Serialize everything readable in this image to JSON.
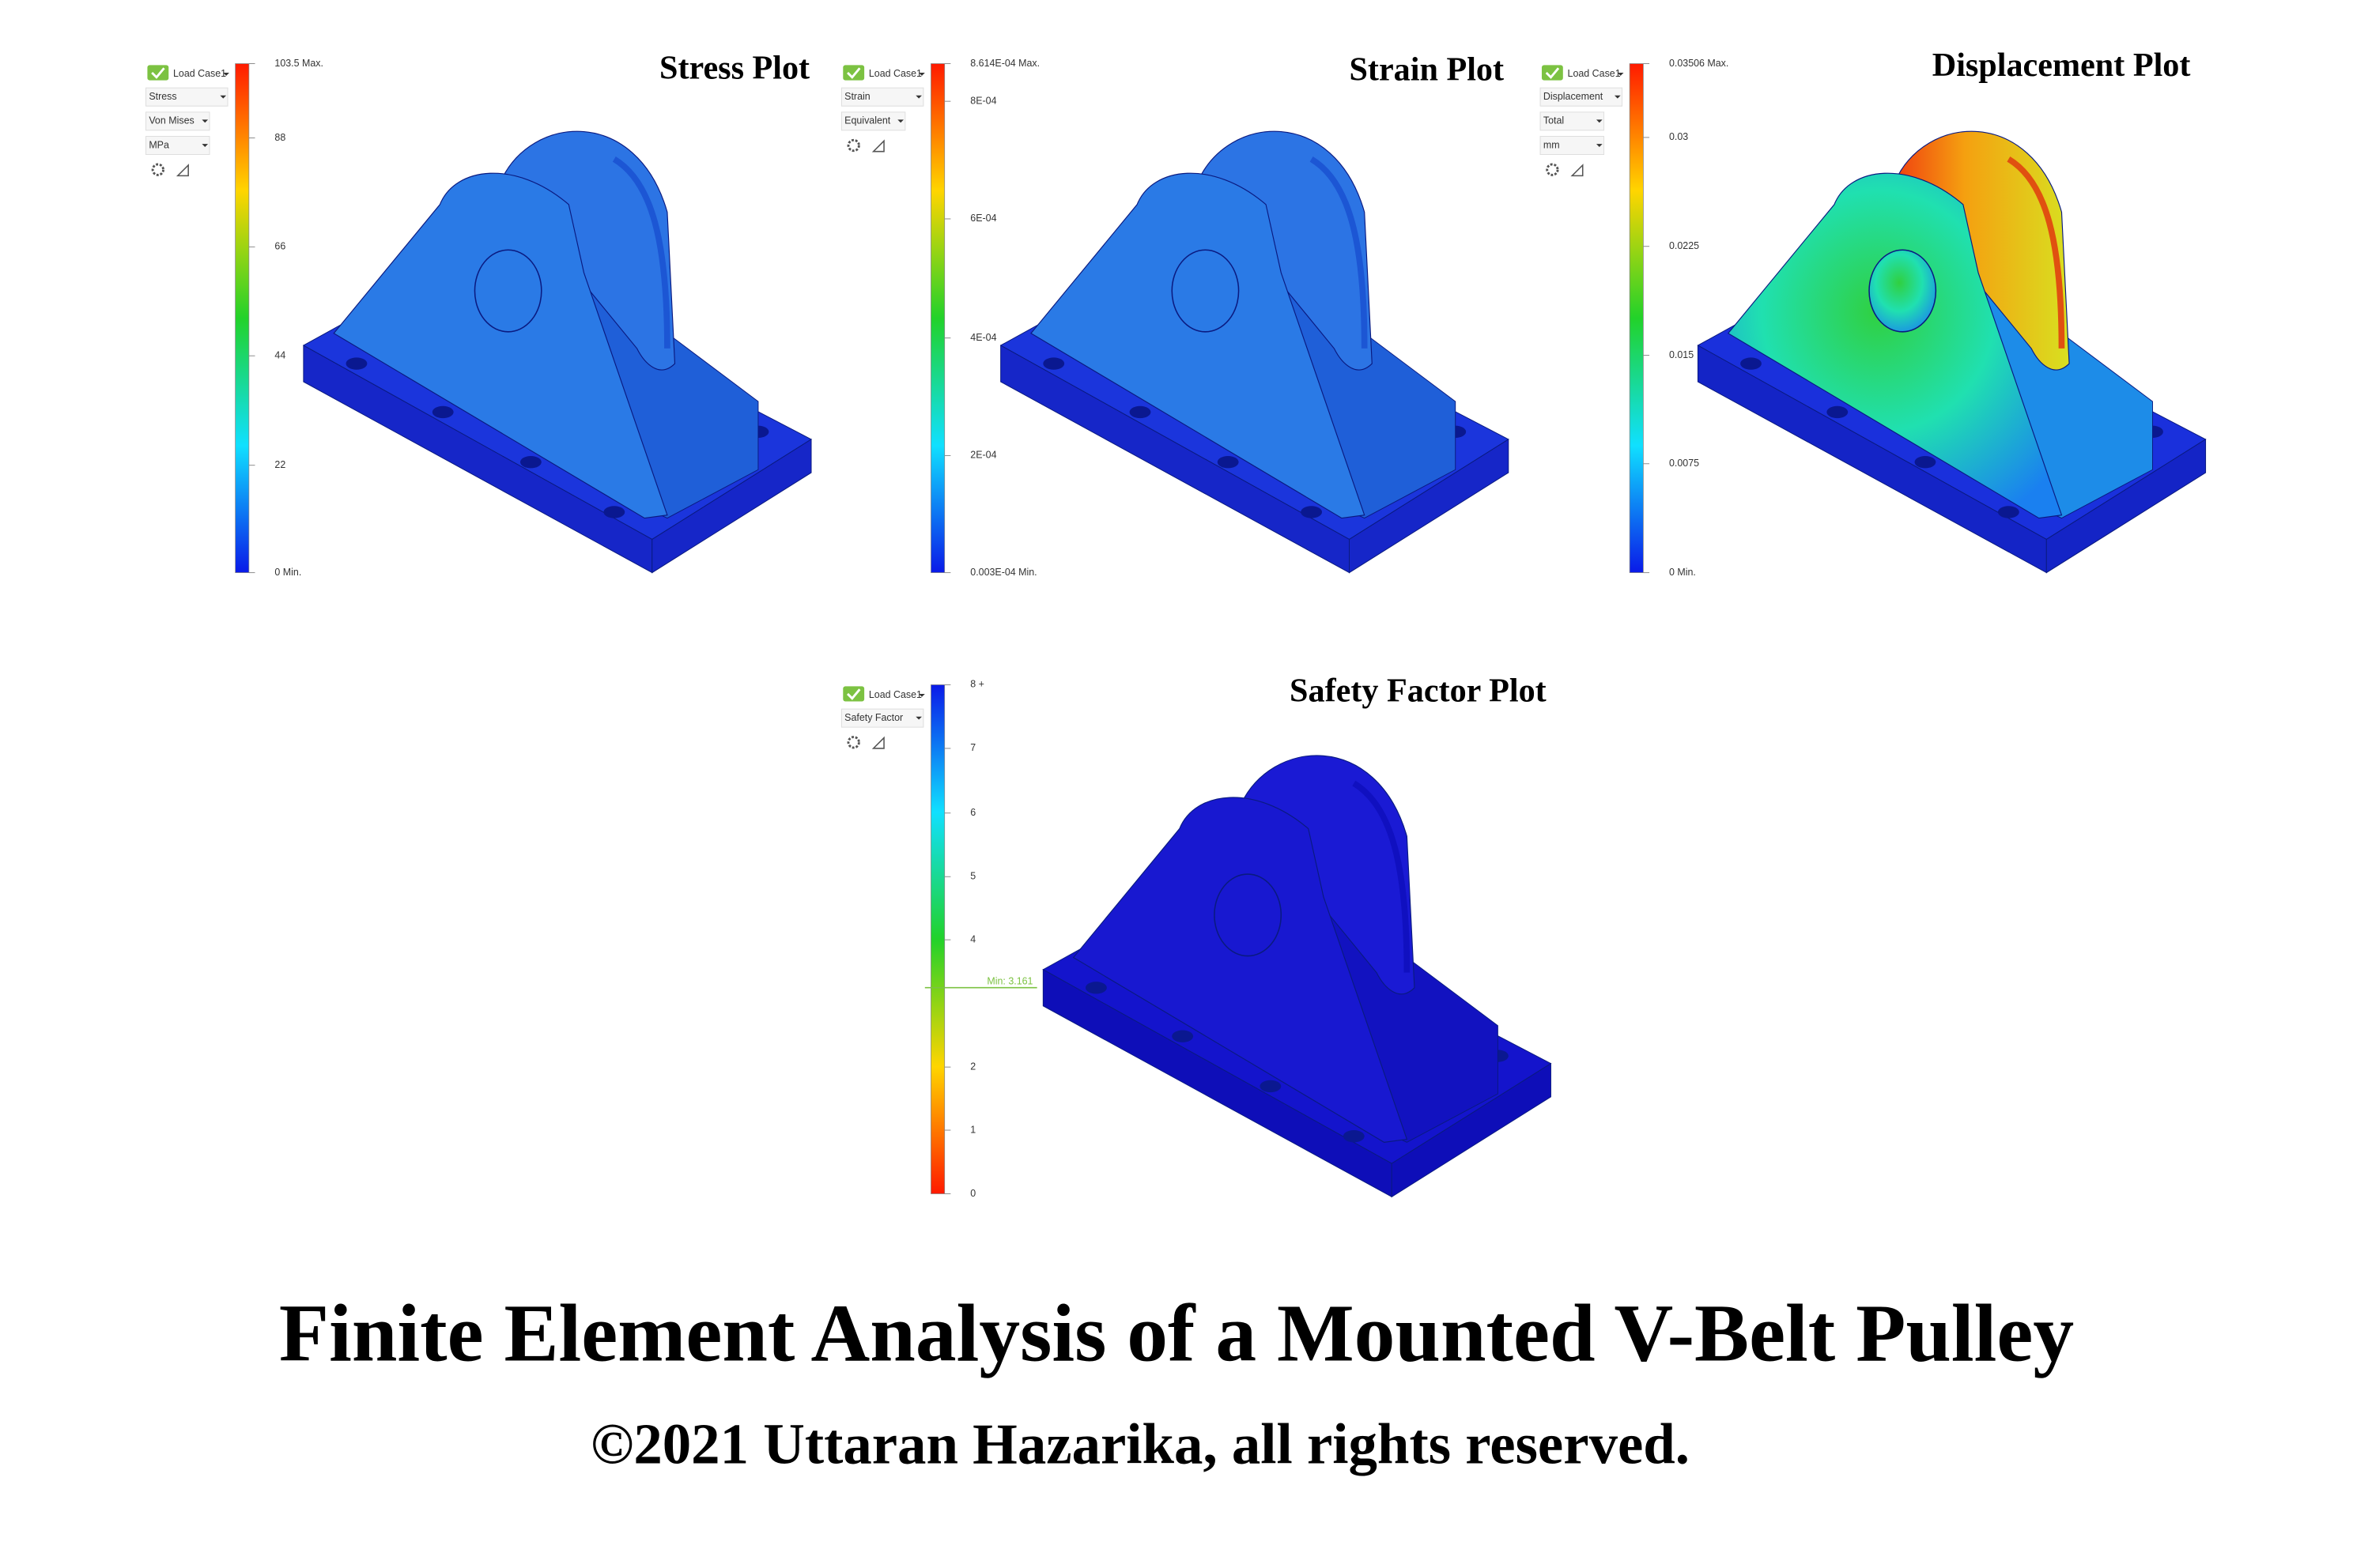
{
  "panels": [
    {
      "title": "Stress Plot",
      "load_case": "Load Case1",
      "controls": [
        "Stress",
        "Von Mises",
        "MPa"
      ],
      "legend": [
        "103.5 Max.",
        "88",
        "66",
        "44",
        "22",
        "0 Min."
      ]
    },
    {
      "title": "Strain Plot",
      "load_case": "Load Case1",
      "controls": [
        "Strain",
        "Equivalent"
      ],
      "legend": [
        "8.614E-04 Max.",
        "8E-04",
        "6E-04",
        "4E-04",
        "2E-04",
        "0.003E-04 Min."
      ]
    },
    {
      "title": "Displacement Plot",
      "load_case": "Load Case1",
      "controls": [
        "Displacement",
        "Total",
        "mm"
      ],
      "legend": [
        "0.03506 Max.",
        "0.03",
        "0.0225",
        "0.015",
        "0.0075",
        "0 Min."
      ]
    },
    {
      "title": "Safety Factor Plot",
      "load_case": "Load Case1",
      "controls": [
        "Safety Factor"
      ],
      "legend": [
        "8 +",
        "7",
        "6",
        "5",
        "4",
        "2",
        "1",
        "0"
      ],
      "min_marker": "Min: 3.161"
    }
  ],
  "title": "Finite Element Analysis of a Mounted V-Belt Pulley",
  "copyright": "©2021 Uttaran Hazarika, all rights reserved."
}
